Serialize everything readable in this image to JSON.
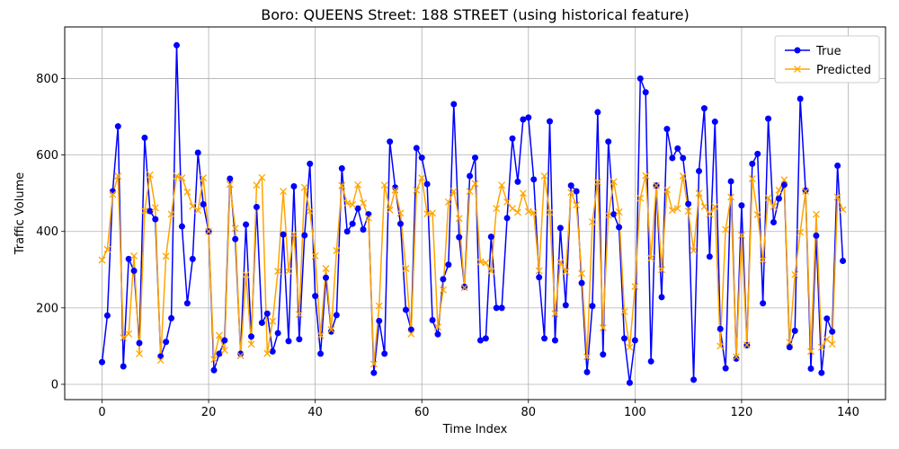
{
  "chart_data": {
    "type": "line",
    "title": "Boro: QUEENS Street: 188 STREET (using historical feature)",
    "xlabel": "Time Index",
    "ylabel": "Traffic Volume",
    "xlim": [
      -7,
      147
    ],
    "ylim": [
      -40,
      935
    ],
    "xticks": [
      0,
      20,
      40,
      60,
      80,
      100,
      120,
      140
    ],
    "yticks": [
      0,
      200,
      400,
      600,
      800
    ],
    "grid": true,
    "legend_position": "top-right",
    "series": [
      {
        "name": "True",
        "color": "#0000ff",
        "marker": "circle",
        "values": [
          58,
          180,
          505,
          675,
          47,
          328,
          297,
          108,
          645,
          453,
          432,
          73,
          111,
          173,
          887,
          413,
          212,
          328,
          606,
          471,
          400,
          37,
          80,
          115,
          538,
          380,
          80,
          418,
          125,
          464,
          161,
          185,
          86,
          134,
          392,
          113,
          518,
          118,
          390,
          577,
          231,
          80,
          279,
          138,
          181,
          565,
          400,
          420,
          460,
          405,
          445,
          30,
          166,
          80,
          635,
          515,
          420,
          195,
          143,
          618,
          593,
          524,
          168,
          131,
          275,
          313,
          733,
          385,
          255,
          545,
          593,
          115,
          120,
          386,
          200,
          200,
          435,
          643,
          530,
          693,
          698,
          536,
          280,
          120,
          688,
          115,
          409,
          207,
          520,
          505,
          265,
          32,
          205,
          712,
          78,
          635,
          445,
          411,
          120,
          4,
          115,
          800,
          764,
          60,
          520,
          228,
          668,
          592,
          617,
          592,
          472,
          12,
          558,
          722,
          334,
          687,
          145,
          42,
          531,
          67,
          468,
          102,
          577,
          603,
          212,
          695,
          424,
          486,
          522,
          97,
          140,
          747,
          507,
          41,
          389,
          30,
          172,
          138,
          572,
          323
        ]
      },
      {
        "name": "Predicted",
        "color": "#ffa500",
        "marker": "x",
        "values": [
          325,
          353,
          497,
          545,
          122,
          132,
          336,
          80,
          454,
          548,
          462,
          63,
          335,
          445,
          545,
          540,
          503,
          466,
          455,
          540,
          400,
          65,
          128,
          89,
          523,
          408,
          75,
          287,
          105,
          521,
          541,
          81,
          165,
          296,
          505,
          296,
          393,
          183,
          515,
          453,
          336,
          128,
          303,
          143,
          350,
          520,
          474,
          470,
          522,
          474,
          435,
          53,
          205,
          521,
          456,
          508,
          448,
          303,
          132,
          508,
          540,
          446,
          448,
          150,
          247,
          477,
          505,
          434,
          253,
          505,
          525,
          320,
          318,
          296,
          460,
          521,
          477,
          460,
          450,
          500,
          452,
          449,
          297,
          545,
          450,
          185,
          320,
          295,
          502,
          469,
          290,
          72,
          425,
          529,
          148,
          442,
          530,
          451,
          190,
          97,
          256,
          487,
          546,
          330,
          520,
          300,
          509,
          455,
          460,
          545,
          453,
          350,
          500,
          465,
          445,
          465,
          100,
          405,
          490,
          72,
          390,
          103,
          538,
          444,
          325,
          488,
          465,
          508,
          535,
          110,
          287,
          398,
          505,
          86,
          445,
          97,
          118,
          105,
          490,
          457
        ]
      }
    ]
  }
}
